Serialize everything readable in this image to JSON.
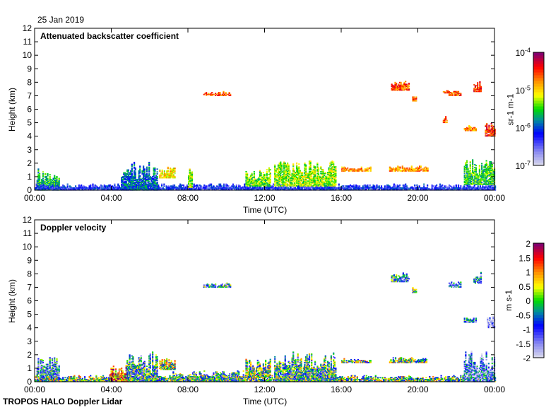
{
  "date_label": "25 Jan 2019",
  "footer_label": "TROPOS HALO Doppler Lidar",
  "chart_data": [
    {
      "type": "heatmap",
      "title": "Attenuated backscatter coefficient",
      "xlabel": "Time (UTC)",
      "ylabel": "Height (km)",
      "xticks": [
        "00:00",
        "04:00",
        "08:00",
        "12:00",
        "16:00",
        "20:00",
        "00:00"
      ],
      "xlim_hours": [
        0,
        24
      ],
      "yticks": [
        "0",
        "1",
        "2",
        "3",
        "4",
        "5",
        "6",
        "7",
        "8",
        "9",
        "10",
        "11",
        "12"
      ],
      "ylim": [
        0,
        12
      ],
      "colorbar": {
        "label": "sr-1 m-1",
        "scale": "log",
        "ticks": [
          "10-7",
          "10-6",
          "10-5",
          "10-4"
        ],
        "range_log10": [
          -7,
          -4
        ]
      },
      "features": [
        {
          "t": [
            0.1,
            1.3
          ],
          "h": [
            0,
            1.8
          ],
          "v": -5.6
        },
        {
          "t": [
            0,
            24
          ],
          "h": [
            0,
            0.45
          ],
          "v": -6.2
        },
        {
          "t": [
            4.5,
            6.4
          ],
          "h": [
            0,
            2.2
          ],
          "v": -5.9
        },
        {
          "t": [
            6.5,
            7.3
          ],
          "h": [
            0.9,
            1.7
          ],
          "v": -5.0
        },
        {
          "t": [
            8.0,
            8.2
          ],
          "h": [
            0.2,
            1.7
          ],
          "v": -5.3
        },
        {
          "t": [
            8.8,
            10.2
          ],
          "h": [
            7.0,
            7.3
          ],
          "v": -4.6
        },
        {
          "t": [
            11.0,
            12.3
          ],
          "h": [
            0.3,
            1.7
          ],
          "v": -5.4
        },
        {
          "t": [
            12.5,
            15.7
          ],
          "h": [
            0.3,
            2.2
          ],
          "v": -5.3
        },
        {
          "t": [
            16.0,
            17.5
          ],
          "h": [
            1.4,
            1.7
          ],
          "v": -4.8
        },
        {
          "t": [
            18.5,
            20.5
          ],
          "h": [
            1.4,
            1.8
          ],
          "v": -4.8
        },
        {
          "t": [
            18.6,
            19.5
          ],
          "h": [
            7.4,
            8.1
          ],
          "v": -4.6
        },
        {
          "t": [
            19.7,
            19.9
          ],
          "h": [
            6.6,
            7.0
          ],
          "v": -4.6
        },
        {
          "t": [
            21.3,
            21.6
          ],
          "h": [
            7.2,
            7.4
          ],
          "v": -4.6
        },
        {
          "t": [
            21.6,
            22.2
          ],
          "h": [
            7.0,
            7.4
          ],
          "v": -4.6
        },
        {
          "t": [
            21.3,
            21.5
          ],
          "h": [
            5.0,
            5.5
          ],
          "v": -4.6
        },
        {
          "t": [
            22.9,
            23.3
          ],
          "h": [
            7.3,
            8.1
          ],
          "v": -4.5
        },
        {
          "t": [
            22.4,
            23.0
          ],
          "h": [
            4.4,
            4.8
          ],
          "v": -4.7
        },
        {
          "t": [
            23.5,
            24.0
          ],
          "h": [
            4.0,
            5.0
          ],
          "v": -4.5
        },
        {
          "t": [
            22.4,
            24.0
          ],
          "h": [
            0.4,
            2.3
          ],
          "v": -5.5
        }
      ]
    },
    {
      "type": "heatmap",
      "title": "Doppler velocity",
      "xlabel": "Time (UTC)",
      "ylabel": "Height (km)",
      "xticks": [
        "00:00",
        "04:00",
        "08:00",
        "12:00",
        "16:00",
        "20:00",
        "00:00"
      ],
      "xlim_hours": [
        0,
        24
      ],
      "yticks": [
        "0",
        "1",
        "2",
        "3",
        "4",
        "5",
        "6",
        "7",
        "8",
        "9",
        "10",
        "11",
        "12"
      ],
      "ylim": [
        0,
        12
      ],
      "colorbar": {
        "label": "m s-1",
        "scale": "linear",
        "ticks": [
          "-2",
          "-1.5",
          "-1",
          "-0.5",
          "0",
          "0.5",
          "1",
          "1.5",
          "2"
        ],
        "range": [
          -2,
          2
        ]
      },
      "features": [
        {
          "t": [
            0.1,
            1.3
          ],
          "h": [
            0,
            1.8
          ],
          "v": -0.8
        },
        {
          "t": [
            0,
            24
          ],
          "h": [
            0,
            0.45
          ],
          "v": 0.0
        },
        {
          "t": [
            3.9,
            5.0
          ],
          "h": [
            0,
            1.3
          ],
          "v": 1.2
        },
        {
          "t": [
            4.8,
            6.4
          ],
          "h": [
            0,
            2.2
          ],
          "v": -0.4
        },
        {
          "t": [
            6.5,
            7.3
          ],
          "h": [
            0.9,
            1.7
          ],
          "v": 0.2
        },
        {
          "t": [
            7.2,
            11.0
          ],
          "h": [
            0,
            0.8
          ],
          "v": -0.3
        },
        {
          "t": [
            8.8,
            10.2
          ],
          "h": [
            7.0,
            7.3
          ],
          "v": -0.5
        },
        {
          "t": [
            11.0,
            12.3
          ],
          "h": [
            0.3,
            1.7
          ],
          "v": 0.0
        },
        {
          "t": [
            12.5,
            15.7
          ],
          "h": [
            0,
            2.2
          ],
          "v": -0.3
        },
        {
          "t": [
            16.0,
            17.5
          ],
          "h": [
            1.4,
            1.7
          ],
          "v": 0.0
        },
        {
          "t": [
            18.5,
            20.5
          ],
          "h": [
            1.4,
            1.8
          ],
          "v": 0.0
        },
        {
          "t": [
            18.6,
            19.5
          ],
          "h": [
            7.4,
            8.1
          ],
          "v": -0.6
        },
        {
          "t": [
            19.7,
            19.9
          ],
          "h": [
            6.6,
            7.0
          ],
          "v": -0.2
        },
        {
          "t": [
            21.6,
            22.2
          ],
          "h": [
            7.0,
            7.4
          ],
          "v": -1.0
        },
        {
          "t": [
            22.9,
            23.3
          ],
          "h": [
            7.3,
            8.1
          ],
          "v": -0.9
        },
        {
          "t": [
            22.4,
            23.0
          ],
          "h": [
            4.4,
            4.8
          ],
          "v": -0.8
        },
        {
          "t": [
            23.6,
            24.0
          ],
          "h": [
            4.0,
            5.0
          ],
          "v": -1.9
        },
        {
          "t": [
            22.4,
            24.0
          ],
          "h": [
            0,
            2.3
          ],
          "v": -1.1
        }
      ]
    }
  ]
}
